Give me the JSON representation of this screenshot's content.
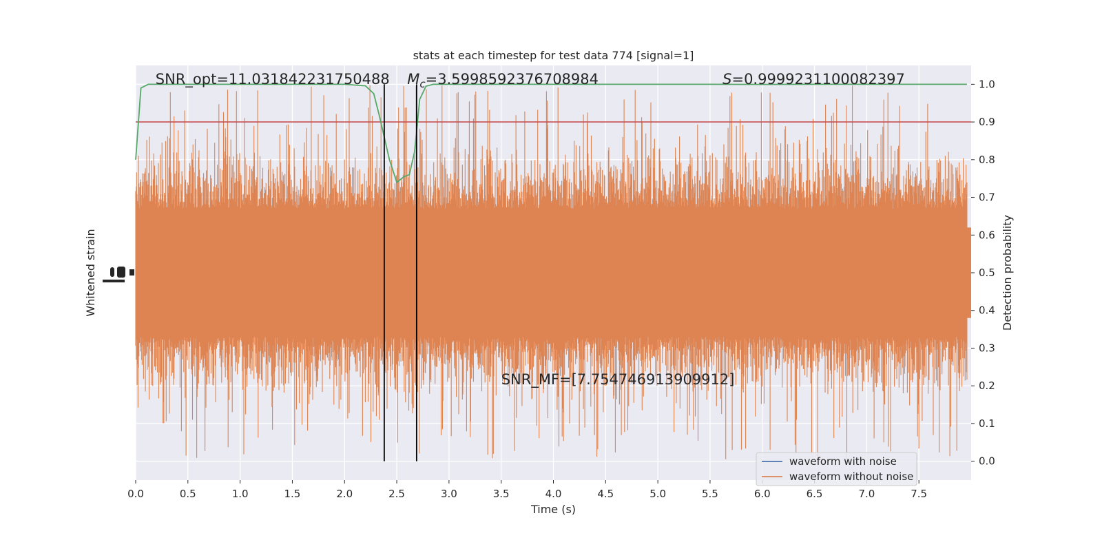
{
  "chart_data": {
    "type": "line",
    "title": "stats at each timestep for test data 774 [signal=1]",
    "xlabel": "Time (s)",
    "ylabel_left": "Whitened strain",
    "ylabel_right": "Detection probability",
    "xlim": [
      0.0,
      8.0
    ],
    "ylim_right": [
      -0.05,
      1.05
    ],
    "x_ticks": [
      0.0,
      0.5,
      1.0,
      1.5,
      2.0,
      2.5,
      3.0,
      3.5,
      4.0,
      4.5,
      5.0,
      5.5,
      6.0,
      6.5,
      7.0,
      7.5
    ],
    "x_tick_labels": [
      "0.0",
      "0.5",
      "1.0",
      "1.5",
      "2.0",
      "2.5",
      "3.0",
      "3.5",
      "4.0",
      "4.5",
      "5.0",
      "5.5",
      "6.0",
      "6.5",
      "7.0",
      "7.5"
    ],
    "y_right_ticks": [
      0.0,
      0.1,
      0.2,
      0.3,
      0.4,
      0.5,
      0.6,
      0.7,
      0.8,
      0.9,
      1.0
    ],
    "y_right_tick_labels": [
      "0.0",
      "0.1",
      "0.2",
      "0.3",
      "0.4",
      "0.5",
      "0.6",
      "0.7",
      "0.8",
      "0.9",
      "1.0"
    ],
    "grid": true,
    "legend_position": "bottom-right",
    "series": [
      {
        "name": "waveform with noise",
        "color": "#4c72b0"
      },
      {
        "name": "waveform without noise",
        "color": "#dd8452"
      }
    ],
    "detection_probability": {
      "color": "#55a868",
      "x": [
        0.0,
        0.05,
        0.12,
        0.3,
        0.6,
        1.0,
        1.5,
        2.0,
        2.1,
        2.2,
        2.28,
        2.33,
        2.38,
        2.43,
        2.5,
        2.57,
        2.62,
        2.67,
        2.72,
        2.78,
        2.85,
        3.0,
        3.5,
        4.0,
        5.0,
        5.5,
        6.0,
        6.5,
        7.0,
        7.5,
        7.96
      ],
      "y": [
        0.8,
        0.99,
        1.0,
        1.0,
        1.0,
        1.0,
        1.0,
        1.0,
        0.998,
        0.996,
        0.975,
        0.92,
        0.86,
        0.8,
        0.74,
        0.755,
        0.76,
        0.82,
        0.96,
        0.995,
        1.0,
        1.0,
        1.0,
        1.0,
        1.0,
        1.0,
        0.9995,
        1.0,
        1.0,
        1.0,
        1.0
      ]
    },
    "threshold": {
      "y": 0.9,
      "color": "#c44e52"
    },
    "event_bounds": [
      2.38,
      2.69
    ],
    "strain_envelope": {
      "color": "#dd8452",
      "dense_band": [
        0.3,
        0.7
      ],
      "spike_range": [
        0.0,
        1.0
      ]
    },
    "annotations": [
      {
        "text": "SNR_opt=11.031842231750488",
        "x": 0.19,
        "y": 1.013
      },
      {
        "text_main": "M",
        "text_sub": "c",
        "text_rest": "=3.5998592376708984",
        "x": 2.6,
        "y": 1.013
      },
      {
        "text_main": "S",
        "text_rest": "=0.9999231100082397",
        "x": 5.62,
        "y": 1.013
      },
      {
        "text": "SNR_MF=[7.754746913909912]",
        "x": 3.5,
        "y": 0.217
      }
    ]
  }
}
